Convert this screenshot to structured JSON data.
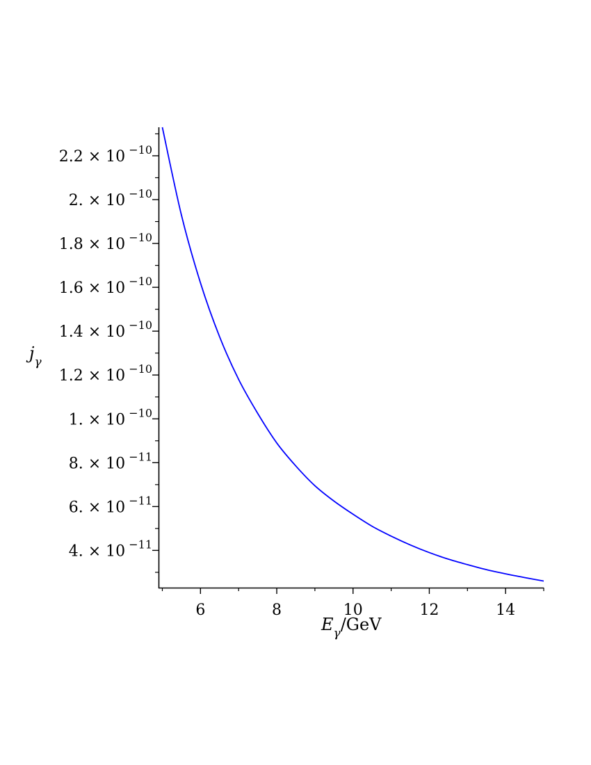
{
  "chart_data": {
    "type": "line",
    "title": "",
    "xlabel": {
      "symbol": "E",
      "subscript": "γ",
      "unit": "/GeV"
    },
    "ylabel": {
      "symbol": "j",
      "subscript": "γ"
    },
    "xlim": [
      4.9,
      15
    ],
    "ylim": [
      2.3e-11,
      2.33e-10
    ],
    "x_ticks": [
      {
        "value": 6,
        "label": "6"
      },
      {
        "value": 8,
        "label": "8"
      },
      {
        "value": 10,
        "label": "10"
      },
      {
        "value": 12,
        "label": "12"
      },
      {
        "value": 14,
        "label": "14"
      }
    ],
    "y_ticks": [
      {
        "value": 4e-11,
        "mantissa": "4.",
        "exponent": "−11"
      },
      {
        "value": 6e-11,
        "mantissa": "6.",
        "exponent": "−11"
      },
      {
        "value": 8e-11,
        "mantissa": "8.",
        "exponent": "−11"
      },
      {
        "value": 1e-10,
        "mantissa": "1.",
        "exponent": "−10"
      },
      {
        "value": 1.2e-10,
        "mantissa": "1.2",
        "exponent": "−10"
      },
      {
        "value": 1.4e-10,
        "mantissa": "1.4",
        "exponent": "−10"
      },
      {
        "value": 1.6e-10,
        "mantissa": "1.6",
        "exponent": "−10"
      },
      {
        "value": 1.8e-10,
        "mantissa": "1.8",
        "exponent": "−10"
      },
      {
        "value": 2e-10,
        "mantissa": "2.",
        "exponent": "−10"
      },
      {
        "value": 2.2e-10,
        "mantissa": "2.2",
        "exponent": "−10"
      }
    ],
    "times_symbol": "×",
    "base": "10",
    "grid": false,
    "legend": "none",
    "series": [
      {
        "color": "#0000ff",
        "x": [
          5.0,
          5.5,
          6.0,
          6.5,
          7.0,
          7.5,
          8.0,
          8.5,
          9.0,
          9.5,
          10.0,
          10.5,
          11.0,
          11.5,
          12.0,
          12.5,
          13.0,
          13.5,
          14.0,
          14.5,
          15.0
        ],
        "y": [
          2.33e-10,
          1.93e-10,
          1.62e-10,
          1.375e-10,
          1.18e-10,
          1.025e-10,
          8.9e-11,
          7.85e-11,
          6.95e-11,
          6.25e-11,
          5.65e-11,
          5.1e-11,
          4.65e-11,
          4.25e-11,
          3.9e-11,
          3.6e-11,
          3.35e-11,
          3.12e-11,
          2.93e-11,
          2.76e-11,
          2.6e-11
        ]
      }
    ]
  }
}
